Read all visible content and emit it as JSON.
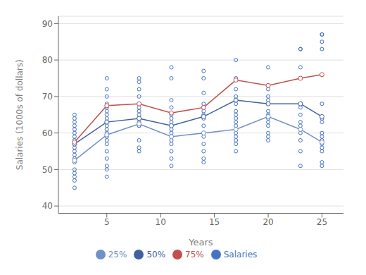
{
  "chart_data": {
    "type": "line",
    "xlabel": "Years",
    "ylabel": "Salaries (1000s of dollars)",
    "xlim": [
      0.5,
      27
    ],
    "ylim": [
      38,
      92
    ],
    "xticks": [
      5,
      10,
      15,
      20,
      25
    ],
    "yticks": [
      40,
      50,
      60,
      70,
      80,
      90
    ],
    "grid": "y",
    "legend": "bottom",
    "series": [
      {
        "name": "Salaries",
        "type": "scatter",
        "marker": "circle",
        "color": "#4472C4",
        "x": [
          2,
          2,
          2,
          2,
          2,
          2,
          2,
          2,
          2,
          2,
          2,
          2,
          2,
          2,
          2,
          2,
          2,
          2,
          2,
          2,
          5,
          5,
          5,
          5,
          5,
          5,
          5,
          5,
          5,
          5,
          5,
          5,
          5,
          5,
          5,
          5,
          5,
          5,
          5,
          5,
          8,
          8,
          8,
          8,
          8,
          8,
          8,
          8,
          8,
          8,
          8,
          8,
          8,
          8,
          8,
          11,
          11,
          11,
          11,
          11,
          11,
          11,
          11,
          11,
          11,
          11,
          11,
          11,
          11,
          11,
          11,
          14,
          14,
          14,
          14,
          14,
          14,
          14,
          14,
          14,
          14,
          14,
          14,
          14,
          14,
          14,
          17,
          17,
          17,
          17,
          17,
          17,
          17,
          17,
          17,
          17,
          17,
          17,
          17,
          17,
          17,
          17,
          20,
          20,
          20,
          20,
          20,
          20,
          20,
          20,
          20,
          20,
          20,
          20,
          20,
          20,
          23,
          23,
          23,
          23,
          23,
          23,
          23,
          23,
          23,
          23,
          23,
          23,
          23,
          25,
          25,
          25,
          25,
          25,
          25,
          25,
          25,
          25,
          25,
          25,
          25,
          25,
          25,
          25,
          25
        ],
        "values": [
          45,
          47,
          48,
          49,
          50,
          52,
          53,
          54,
          55,
          56,
          57,
          57,
          58,
          59,
          60,
          61,
          62,
          63,
          64,
          65,
          48,
          50,
          51,
          53,
          55,
          57,
          58,
          59,
          60,
          61,
          62,
          63,
          64,
          65,
          66,
          67,
          68,
          70,
          72,
          75,
          55,
          56,
          58,
          62,
          62,
          63,
          64,
          65,
          66,
          67,
          68,
          70,
          72,
          74,
          75,
          51,
          53,
          55,
          57,
          58,
          59,
          60,
          61,
          62,
          63,
          64,
          65,
          67,
          69,
          75,
          78,
          52,
          53,
          55,
          57,
          59,
          60,
          62,
          64,
          65,
          66,
          67,
          68,
          71,
          75,
          77,
          55,
          57,
          58,
          59,
          60,
          62,
          63,
          64,
          65,
          66,
          68,
          69,
          70,
          72,
          75,
          80,
          58,
          59,
          60,
          62,
          63,
          64,
          65,
          66,
          68,
          69,
          70,
          72,
          73,
          78,
          51,
          55,
          58,
          60,
          62,
          63,
          65,
          67,
          68,
          75,
          78,
          83,
          83,
          51,
          52,
          55,
          56,
          57,
          58,
          59,
          60,
          63,
          64,
          68,
          76,
          83,
          85,
          87,
          87
        ]
      },
      {
        "name": "25%",
        "type": "line",
        "marker": "circle",
        "line_style": "solid",
        "color": "#7090C8",
        "x": [
          2,
          5,
          8,
          11,
          14,
          17,
          20,
          23,
          25
        ],
        "values": [
          52.5,
          59.5,
          62.5,
          59.0,
          60.0,
          61.0,
          64.5,
          61.0,
          57.5
        ]
      },
      {
        "name": "50%",
        "type": "line",
        "marker": "circle",
        "line_style": "solid",
        "color": "#4060A0",
        "x": [
          2,
          5,
          8,
          11,
          14,
          17,
          20,
          23,
          25
        ],
        "values": [
          57.0,
          63.0,
          64.0,
          62.0,
          64.5,
          69.0,
          68.0,
          68.0,
          64.5
        ]
      },
      {
        "name": "75%",
        "type": "line",
        "marker": "circle",
        "line_style": "solid",
        "color": "#C0504D",
        "x": [
          2,
          5,
          8,
          11,
          14,
          17,
          20,
          23,
          25
        ],
        "values": [
          57.5,
          67.5,
          68.0,
          65.5,
          67.0,
          74.5,
          73.0,
          75.0,
          76.0
        ]
      }
    ]
  }
}
